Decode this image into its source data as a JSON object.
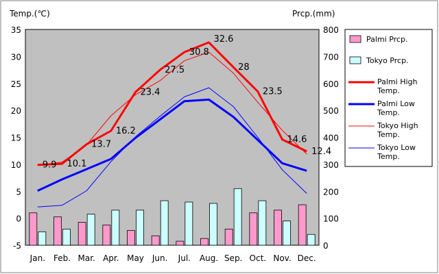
{
  "chart_data": {
    "type": "bar",
    "categories": [
      "Jan.",
      "Feb.",
      "Mar.",
      "Apr.",
      "May",
      "Jun.",
      "Jul.",
      "Aug.",
      "Sep.",
      "Oct.",
      "Nov.",
      "Dec."
    ],
    "ylabel": "Temp.(℃)",
    "y2label": "Prcp.(mm)",
    "ylim": [
      -5,
      35
    ],
    "y2lim": [
      0,
      800
    ],
    "yticks": [
      -5,
      0,
      5,
      10,
      15,
      20,
      25,
      30,
      35
    ],
    "y2ticks": [
      0,
      100,
      200,
      300,
      400,
      500,
      600,
      700,
      800
    ],
    "grid": false,
    "plot_background": "#c0c0c0",
    "legend_position": "right",
    "bar_series": [
      {
        "name": "Palmi Prcp.",
        "axis": "right",
        "color": "#ff99cc",
        "values": [
          120,
          105,
          85,
          75,
          55,
          35,
          15,
          25,
          60,
          120,
          130,
          150
        ]
      },
      {
        "name": "Tokyo Prcp.",
        "axis": "right",
        "color": "#ccffff",
        "values": [
          50,
          60,
          115,
          130,
          130,
          165,
          160,
          155,
          210,
          165,
          90,
          40
        ]
      }
    ],
    "line_series": [
      {
        "name": "Palmi High Temp.",
        "axis": "left",
        "color": "#ff0000",
        "width": 3,
        "values": [
          9.9,
          10.1,
          13.7,
          16.2,
          23.4,
          27.5,
          30.8,
          32.6,
          28,
          23.5,
          14.6,
          12.4
        ],
        "data_labels": [
          "9.9",
          "10.1",
          "13.7",
          "16.2",
          "23.4",
          "27.5",
          "30.8",
          "32.6",
          "28",
          "23.5",
          "14.6",
          "12.4"
        ]
      },
      {
        "name": "Palmi Low Temp.",
        "axis": "left",
        "color": "#0000ff",
        "width": 3,
        "values": [
          5.1,
          7.2,
          9.1,
          11,
          14.9,
          18.3,
          21.7,
          22,
          18.8,
          14.5,
          10.2,
          8.8
        ]
      },
      {
        "name": "Tokyo High Temp.",
        "axis": "left",
        "color": "#ff0000",
        "width": 1,
        "values": [
          9.8,
          10.4,
          13.6,
          19,
          22.9,
          25.5,
          29.2,
          30.8,
          26.9,
          21.5,
          16.3,
          11.9
        ]
      },
      {
        "name": "Tokyo Low Temp.",
        "axis": "left",
        "color": "#0000ff",
        "width": 1,
        "values": [
          2.1,
          2.4,
          5.1,
          10.5,
          15.1,
          18.9,
          22.5,
          24.2,
          20.7,
          15,
          9,
          4.6
        ]
      }
    ],
    "legend": [
      {
        "label_lines": [
          "Palmi Prcp."
        ],
        "kind": "bar",
        "color": "#ff99cc"
      },
      {
        "label_lines": [
          "Tokyo Prcp."
        ],
        "kind": "bar",
        "color": "#ccffff"
      },
      {
        "label_lines": [
          "Palmi High",
          "Temp."
        ],
        "kind": "line",
        "color": "#ff0000",
        "width": 3
      },
      {
        "label_lines": [
          "Palmi Low",
          "Temp."
        ],
        "kind": "line",
        "color": "#0000ff",
        "width": 3
      },
      {
        "label_lines": [
          "Tokyo High",
          "Temp."
        ],
        "kind": "line",
        "color": "#ff0000",
        "width": 1
      },
      {
        "label_lines": [
          "Tokyo Low",
          "Temp."
        ],
        "kind": "line",
        "color": "#0000ff",
        "width": 1
      }
    ]
  }
}
